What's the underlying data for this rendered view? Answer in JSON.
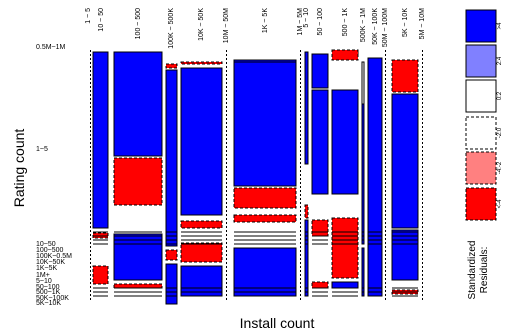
{
  "chart_data": {
    "type": "mosaic",
    "title": "",
    "xlabel": "Install count",
    "ylabel": "Rating count",
    "x_categories": [
      "1 ~ 5",
      "10 ~ 50",
      "100 ~ 500",
      "100K ~ 500K",
      "10K ~ 50K",
      "10M ~ 50M",
      "1K ~ 5K",
      "1M ~ 5M",
      "5 ~ 10",
      "50 ~ 100",
      "500 ~ 1K",
      "500K ~ 1M",
      "50K ~ 100K",
      "50M ~ 100M",
      "5K ~ 10K",
      "5M ~ 10M"
    ],
    "y_categories": [
      "0.5M~1M",
      "1~5",
      "10~50",
      "100~500",
      "100K~0.5M",
      "10K~50K",
      "1K~5K",
      "1M+",
      "5~10",
      "50~100",
      "500~1K",
      "50K~100K",
      "5K~10K"
    ],
    "y_tick_labels_shown": [
      "0.5M~1M",
      "1~5",
      "10~50",
      "100~500",
      "100K~0.5M",
      "10K~50K",
      "1K~5K",
      "1M+",
      "5~10",
      "50~100",
      "500~1K",
      "50K~100K",
      "5K~10K"
    ],
    "columns": [
      {
        "label": "1 ~ 5",
        "cells": [
          {
            "y": "1~5",
            "residual": "neutral"
          }
        ]
      },
      {
        "label": "10 ~ 50",
        "cells": [
          {
            "y": "1~5",
            "residual": ">4"
          },
          {
            "y": "10~50",
            "residual": "<-4"
          },
          {
            "y": "1K~5K",
            "residual": "<-4"
          }
        ]
      },
      {
        "label": "100 ~ 500",
        "cells": [
          {
            "y": "1~5",
            "residual": ">4"
          },
          {
            "y": "1~5 (lower)",
            "residual": "<-4"
          },
          {
            "y": "10~50",
            "residual": ">4"
          },
          {
            "y": "500~1K",
            "residual": "<-4"
          }
        ]
      },
      {
        "label": "100K ~ 500K",
        "cells": [
          {
            "y": "0.5M~1M",
            "residual": "<-4"
          },
          {
            "y": "1~5",
            "residual": ">4"
          },
          {
            "y": "10~50",
            "residual": "<-4"
          },
          {
            "y": "1K~5K",
            "residual": ">4"
          }
        ]
      },
      {
        "label": "10K ~ 50K",
        "cells": [
          {
            "y": "0.5M~1M",
            "residual": "<-4"
          },
          {
            "y": "1~5",
            "residual": ">4"
          },
          {
            "y": "10~50",
            "residual": "<-4"
          },
          {
            "y": "100~500",
            "residual": "<-4"
          },
          {
            "y": "1K~5K",
            "residual": ">4"
          }
        ]
      },
      {
        "label": "10M ~ 50M",
        "cells": [
          {
            "y": "1~5",
            "residual": "neutral"
          }
        ]
      },
      {
        "label": "1K ~ 5K",
        "cells": [
          {
            "y": "0.5M~1M",
            "residual": ">4"
          },
          {
            "y": "1~5",
            "residual": ">4"
          },
          {
            "y": "1~5 (lower)",
            "residual": "<-4"
          },
          {
            "y": "10~50",
            "residual": "<-4"
          },
          {
            "y": "100~500",
            "residual": ">4"
          }
        ]
      },
      {
        "label": "1M ~ 5M",
        "cells": [
          {
            "y": "1~5",
            "residual": "neutral"
          }
        ]
      },
      {
        "label": "5 ~ 10",
        "cells": [
          {
            "y": "1~5",
            "residual": ">4"
          },
          {
            "y": "10~50",
            "residual": "<-4"
          },
          {
            "y": "1K~5K",
            "residual": ">4"
          }
        ]
      },
      {
        "label": "50 ~ 100",
        "cells": [
          {
            "y": "0.5M~1M",
            "residual": ">4"
          },
          {
            "y": "1~5",
            "residual": ">4"
          },
          {
            "y": "10~50",
            "residual": "<-4"
          },
          {
            "y": "1K~5K",
            "residual": "<-4"
          }
        ]
      },
      {
        "label": "500 ~ 1K",
        "cells": [
          {
            "y": "0.5M~1M",
            "residual": "<-4"
          },
          {
            "y": "1~5",
            "residual": ">4"
          },
          {
            "y": "10~50",
            "residual": "<-4"
          },
          {
            "y": "100~500",
            "residual": ">4"
          },
          {
            "y": "1K~5K",
            "residual": "<-4"
          }
        ]
      },
      {
        "label": "500K ~ 1M",
        "cells": [
          {
            "y": "0.5M~1M",
            "residual": "0:2"
          },
          {
            "y": "1~5",
            "residual": ">4"
          },
          {
            "y": "10~50",
            "residual": ">4"
          }
        ]
      },
      {
        "label": "50K ~ 100K",
        "cells": [
          {
            "y": "1~5",
            "residual": ">4"
          }
        ]
      },
      {
        "label": "50M ~ 100M",
        "cells": [
          {
            "y": "1~5",
            "residual": "neutral"
          }
        ]
      },
      {
        "label": "5K ~ 10K",
        "cells": [
          {
            "y": "0.5M~1M",
            "residual": "<-4"
          },
          {
            "y": "1~5",
            "residual": ">4"
          },
          {
            "y": "10~50",
            "residual": ">4"
          },
          {
            "y": "1K~5K",
            "residual": "<-4"
          }
        ]
      },
      {
        "label": "5M ~ 10M",
        "cells": [
          {
            "y": "1~5",
            "residual": "neutral"
          }
        ]
      }
    ],
    "legend": {
      "title": [
        "Standardized",
        "Residuals:"
      ],
      "placement": "right",
      "entries": [
        {
          "label": ">4",
          "fill": "#0000ff",
          "dashed": false
        },
        {
          "label": "2:4",
          "fill": "#8080ff",
          "dashed": false
        },
        {
          "label": "0:2",
          "fill": "#ffffff",
          "dashed": false
        },
        {
          "label": "-2:0",
          "fill": "#ffffff",
          "dashed": true
        },
        {
          "label": "-4:-2",
          "fill": "#ff8080",
          "dashed": true
        },
        {
          "label": "<-4",
          "fill": "#ff0000",
          "dashed": true
        }
      ]
    }
  }
}
